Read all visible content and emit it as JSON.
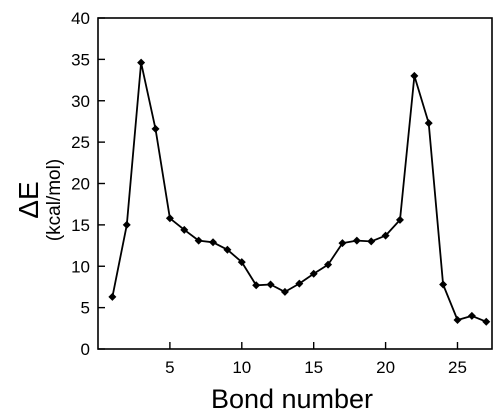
{
  "chart_data": {
    "type": "line",
    "title": "",
    "xlabel": "Bond number",
    "ylabel": "ΔE",
    "ylabel_unit": "(kcal/mol)",
    "xlim": [
      0,
      27.4
    ],
    "ylim": [
      0,
      40
    ],
    "x_ticks": [
      5,
      10,
      15,
      20,
      25
    ],
    "y_ticks": [
      0,
      5,
      10,
      15,
      20,
      25,
      30,
      35,
      40
    ],
    "grid": false,
    "legend": "none",
    "marker": "diamond",
    "line_color": "#000000",
    "x": [
      1,
      2,
      3,
      4,
      5,
      6,
      7,
      8,
      9,
      10,
      11,
      12,
      13,
      14,
      15,
      16,
      17,
      18,
      19,
      20,
      21,
      22,
      23,
      24,
      25,
      26,
      27
    ],
    "y": [
      6.3,
      15.0,
      34.6,
      26.6,
      15.8,
      14.4,
      13.1,
      12.9,
      12.0,
      10.5,
      7.7,
      7.8,
      6.9,
      7.9,
      9.1,
      10.2,
      12.8,
      13.1,
      13.0,
      13.7,
      15.6,
      33.0,
      27.3,
      7.8,
      3.5,
      4.0,
      3.3
    ]
  }
}
